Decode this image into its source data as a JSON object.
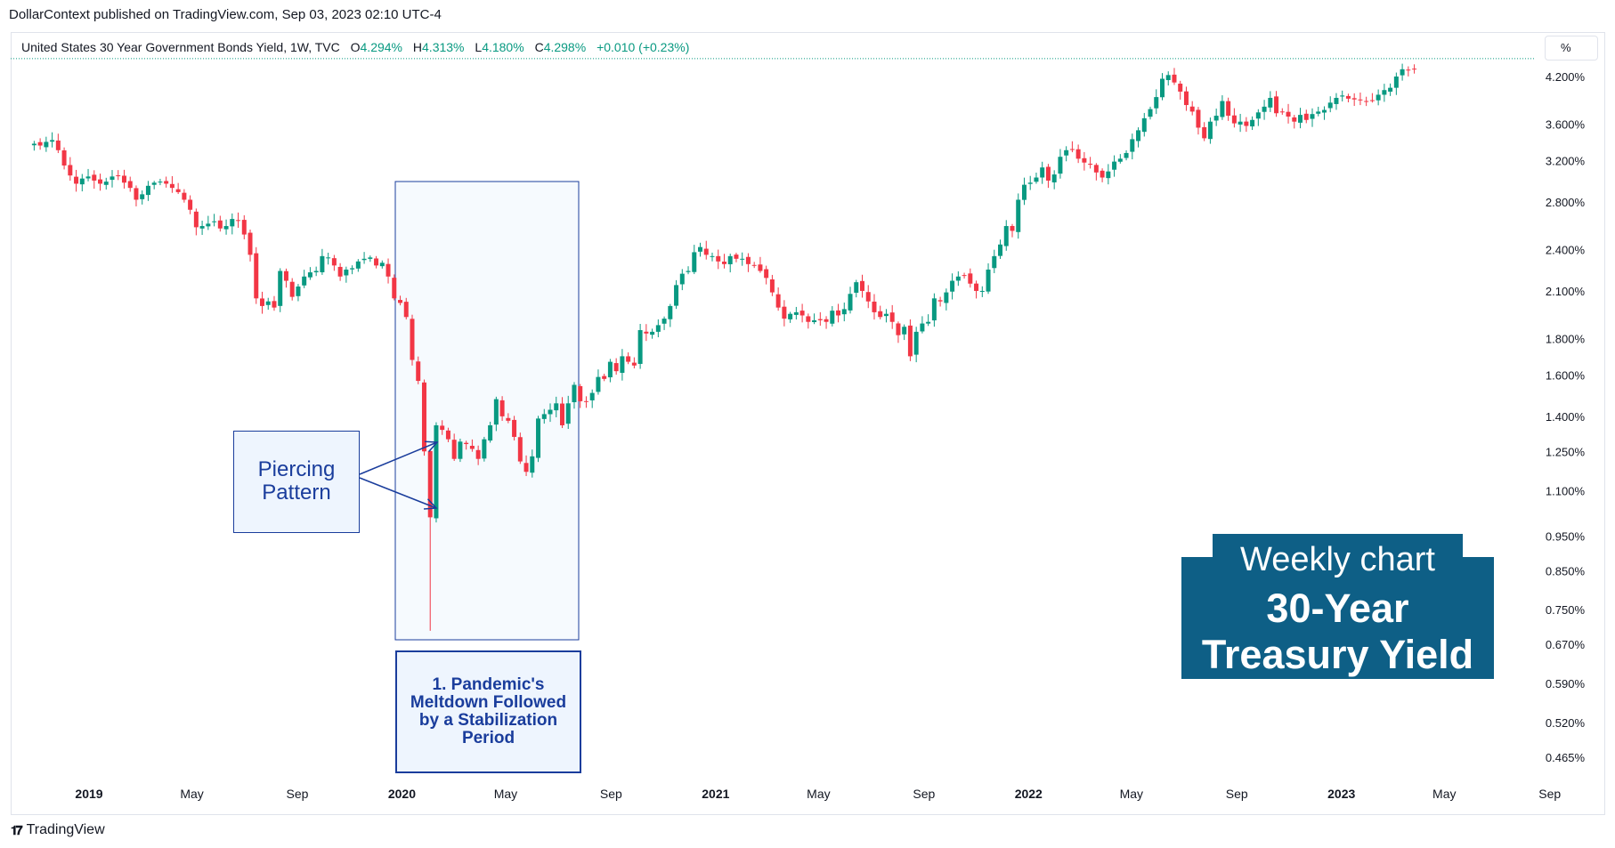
{
  "header": {
    "published": "DollarContext published on TradingView.com, Sep 03, 2023 02:10 UTC-4"
  },
  "legend": {
    "symbol": "United States 30 Year Government Bonds Yield, 1W, TVC",
    "o_label": "O",
    "o_value": "4.294%",
    "h_label": "H",
    "h_value": "4.313%",
    "l_label": "L",
    "l_value": "4.180%",
    "c_label": "C",
    "c_value": "4.298%",
    "change": "+0.010 (+0.23%)"
  },
  "scale_button": "%",
  "footer": {
    "brand": "TradingView"
  },
  "annotations": {
    "piercing_line1": "Piercing",
    "piercing_line2": "Pattern",
    "pandemic_line1": "1. Pandemic's",
    "pandemic_line2": "Meltdown Followed",
    "pandemic_line3": "by a Stabilization",
    "pandemic_line4": "Period",
    "title_line1": "Weekly chart",
    "title_line2": "30-Year",
    "title_line3": "Treasury Yield"
  },
  "colors": {
    "up": "#089981",
    "down": "#f23645",
    "annotation": "#1a3d9c",
    "annotation_fill": "#eef5fe",
    "title_bg": "#0e5f86",
    "last_price_line": "#089981"
  },
  "chart_data": {
    "type": "candlestick",
    "interval": "1W",
    "yscale": "log",
    "ylim": [
      0.44,
      4.7
    ],
    "grid": false,
    "y_ticks": [
      "4.200%",
      "3.600%",
      "3.200%",
      "2.800%",
      "2.400%",
      "2.100%",
      "1.800%",
      "1.600%",
      "1.400%",
      "1.250%",
      "1.100%",
      "0.950%",
      "0.850%",
      "0.750%",
      "0.670%",
      "0.590%",
      "0.520%",
      "0.465%"
    ],
    "x_ticks": [
      {
        "label": "2019",
        "date": "2019-01-01",
        "bold": true
      },
      {
        "label": "May",
        "date": "2019-05-01",
        "bold": false
      },
      {
        "label": "Sep",
        "date": "2019-09-01",
        "bold": false
      },
      {
        "label": "2020",
        "date": "2020-01-01",
        "bold": true
      },
      {
        "label": "May",
        "date": "2020-05-01",
        "bold": false
      },
      {
        "label": "Sep",
        "date": "2020-09-01",
        "bold": false
      },
      {
        "label": "2021",
        "date": "2021-01-01",
        "bold": true
      },
      {
        "label": "May",
        "date": "2021-05-01",
        "bold": false
      },
      {
        "label": "Sep",
        "date": "2021-09-01",
        "bold": false
      },
      {
        "label": "2022",
        "date": "2022-01-01",
        "bold": true
      },
      {
        "label": "May",
        "date": "2022-05-01",
        "bold": false
      },
      {
        "label": "Sep",
        "date": "2022-09-01",
        "bold": false
      },
      {
        "label": "2023",
        "date": "2023-01-01",
        "bold": true
      },
      {
        "label": "May",
        "date": "2023-05-01",
        "bold": false
      },
      {
        "label": "Sep",
        "date": "2023-09-01",
        "bold": false
      }
    ],
    "start_date": "2018-10-29",
    "series": [
      {
        "name": "Weekly closes",
        "values": [
          3.38,
          3.36,
          3.4,
          3.42,
          3.31,
          3.15,
          3.05,
          2.97,
          3.02,
          3.04,
          3.0,
          2.97,
          2.99,
          3.04,
          3.05,
          2.98,
          2.93,
          2.82,
          2.87,
          2.95,
          2.98,
          2.99,
          2.97,
          2.93,
          2.89,
          2.82,
          2.73,
          2.58,
          2.59,
          2.61,
          2.63,
          2.57,
          2.59,
          2.65,
          2.64,
          2.52,
          2.36,
          2.05,
          2.0,
          2.03,
          1.99,
          2.24,
          2.17,
          2.06,
          2.13,
          2.2,
          2.23,
          2.24,
          2.35,
          2.34,
          2.28,
          2.2,
          2.25,
          2.26,
          2.31,
          2.33,
          2.34,
          2.28,
          2.3,
          2.2,
          2.05,
          2.02,
          1.93,
          1.68,
          1.57,
          1.25,
          1.01,
          1.36,
          1.34,
          1.3,
          1.22,
          1.29,
          1.28,
          1.26,
          1.22,
          1.3,
          1.36,
          1.48,
          1.4,
          1.38,
          1.31,
          1.21,
          1.17,
          1.23,
          1.39,
          1.41,
          1.43,
          1.46,
          1.36,
          1.46,
          1.55,
          1.47,
          1.47,
          1.51,
          1.59,
          1.58,
          1.67,
          1.62,
          1.7,
          1.67,
          1.65,
          1.85,
          1.83,
          1.84,
          1.88,
          1.92,
          2.0,
          2.14,
          2.22,
          2.24,
          2.38,
          2.42,
          2.36,
          2.35,
          2.31,
          2.29,
          2.35,
          2.33,
          2.33,
          2.29,
          2.28,
          2.24,
          2.19,
          2.09,
          1.99,
          1.92,
          1.95,
          1.96,
          1.94,
          1.9,
          1.91,
          1.91,
          1.9,
          1.97,
          1.94,
          1.98,
          2.08,
          2.16,
          2.1,
          2.03,
          1.96,
          1.93,
          1.95,
          1.9,
          1.82,
          1.87,
          1.7,
          1.84,
          1.89,
          1.9,
          2.05,
          2.03,
          2.09,
          2.17,
          2.2,
          2.21,
          2.15,
          2.1,
          2.1,
          2.25,
          2.35,
          2.44,
          2.59,
          2.55,
          2.82,
          2.96,
          2.98,
          3.03,
          3.13,
          3.0,
          3.06,
          3.24,
          3.31,
          3.32,
          3.22,
          3.18,
          3.16,
          3.08,
          3.03,
          3.09,
          3.19,
          3.22,
          3.28,
          3.43,
          3.53,
          3.67,
          3.78,
          3.93,
          4.17,
          4.22,
          4.12,
          4.0,
          3.83,
          3.75,
          3.56,
          3.44,
          3.63,
          3.7,
          3.88,
          3.7,
          3.61,
          3.63,
          3.58,
          3.65,
          3.74,
          3.81,
          3.92,
          3.73,
          3.75,
          3.69,
          3.63,
          3.71,
          3.65,
          3.72,
          3.75,
          3.77,
          3.86,
          3.92,
          3.95,
          3.91,
          3.9,
          3.89,
          3.88,
          3.89,
          3.96,
          4.02,
          4.05,
          4.2,
          4.3,
          4.29,
          4.3
        ]
      },
      {
        "name": "Piercing pattern",
        "values": []
      }
    ]
  }
}
